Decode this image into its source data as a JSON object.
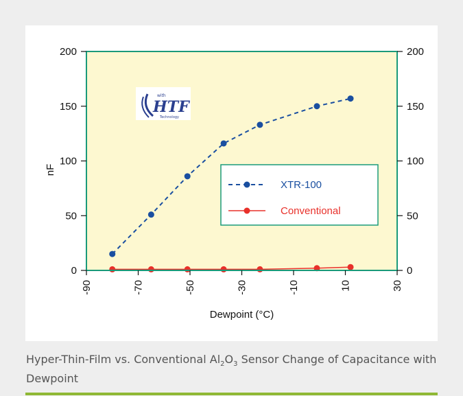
{
  "chart_data": {
    "type": "line",
    "xlabel": "Dewpoint (°C)",
    "ylabel": "nF",
    "xlim": [
      -90,
      30
    ],
    "ylim": [
      0,
      200
    ],
    "x_ticks": [
      -90,
      -70,
      -50,
      -30,
      -10,
      10,
      30
    ],
    "y_ticks": [
      0,
      50,
      100,
      150,
      200
    ],
    "x_tick_labels": [
      "-90",
      "-70",
      "-50",
      "-30",
      "-10",
      "10",
      "30"
    ],
    "y_tick_labels": [
      "0",
      "50",
      "100",
      "150",
      "200"
    ],
    "secondary_y_axis": true,
    "grid": false,
    "legend_position": "center-right",
    "plot_background": "#fdf8d0",
    "frame_color": "#1a9a7a",
    "series": [
      {
        "name": "XTR-100",
        "color": "#1a4fa0",
        "style": "dashed",
        "x": [
          -80,
          -65,
          -51,
          -37,
          -23,
          -1,
          12
        ],
        "y": [
          15,
          51,
          86,
          116,
          133,
          150,
          157
        ]
      },
      {
        "name": "Conventional",
        "color": "#e8302a",
        "style": "solid",
        "x": [
          -80,
          -65,
          -51,
          -37,
          -23,
          -1,
          12
        ],
        "y": [
          1,
          1,
          1,
          1,
          1,
          2,
          3
        ]
      }
    ]
  },
  "logo": {
    "text": "HTF",
    "small_top": "with",
    "small_bottom": "Technology"
  },
  "caption": {
    "part1": "Hyper-Thin-Film vs. Conventional Al",
    "sub1": "2",
    "part2": "O",
    "sub2": "3",
    "part3": " Sensor Change of Capacitance with Dewpoint"
  }
}
